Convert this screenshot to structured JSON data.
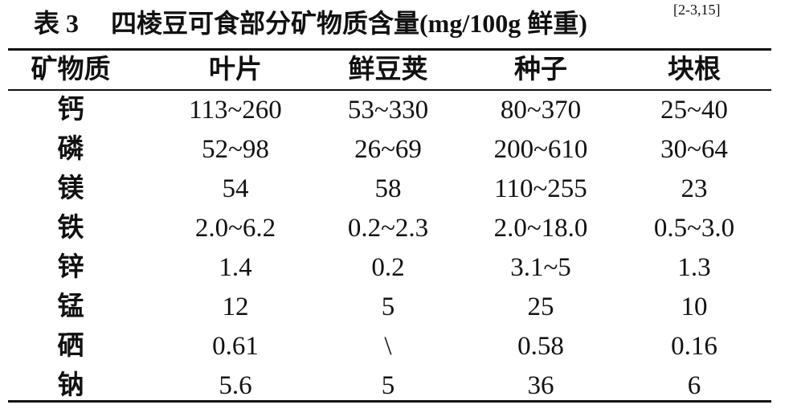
{
  "caption": {
    "label": "表 3",
    "title": "四棱豆可食部分矿物质含量(mg/100g 鲜重)",
    "citation": "[2-3,15]"
  },
  "table": {
    "header": [
      "矿物质",
      "叶片",
      "鲜豆荚",
      "种子",
      "块根"
    ],
    "rows": [
      [
        "钙",
        "113~260",
        "53~330",
        "80~370",
        "25~40"
      ],
      [
        "磷",
        "52~98",
        "26~69",
        "200~610",
        "30~64"
      ],
      [
        "镁",
        "54",
        "58",
        "110~255",
        "23"
      ],
      [
        "铁",
        "2.0~6.2",
        "0.2~2.3",
        "2.0~18.0",
        "0.5~3.0"
      ],
      [
        "锌",
        "1.4",
        "0.2",
        "3.1~5",
        "1.3"
      ],
      [
        "锰",
        "12",
        "5",
        "25",
        "10"
      ],
      [
        "硒",
        "0.61",
        "\\",
        "0.58",
        "0.16"
      ],
      [
        "钠",
        "5.6",
        "5",
        "36",
        "6"
      ]
    ]
  }
}
